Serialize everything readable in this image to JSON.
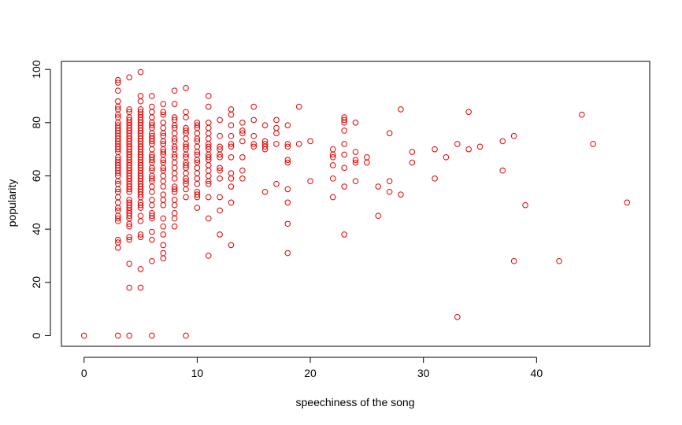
{
  "chart_data": {
    "type": "scatter",
    "title": "",
    "xlabel": "speechiness of the song",
    "ylabel": "popularity",
    "xlim": [
      -2,
      50
    ],
    "ylim": [
      -4,
      103
    ],
    "xticks": [
      "0",
      "10",
      "20",
      "30",
      "40"
    ],
    "yticks": [
      "0",
      "20",
      "40",
      "60",
      "80",
      "100"
    ],
    "point_color": "#e00000",
    "marker": "open-circle",
    "grid": false,
    "legend": "none",
    "points": [
      [
        0,
        0
      ],
      [
        3,
        0
      ],
      [
        4,
        0
      ],
      [
        6,
        0
      ],
      [
        9,
        0
      ],
      [
        3,
        96
      ],
      [
        3,
        95
      ],
      [
        3,
        92
      ],
      [
        3,
        88
      ],
      [
        3,
        86
      ],
      [
        3,
        85
      ],
      [
        3,
        83
      ],
      [
        3,
        82
      ],
      [
        3,
        80
      ],
      [
        3,
        79
      ],
      [
        3,
        78
      ],
      [
        3,
        77
      ],
      [
        3,
        76
      ],
      [
        3,
        75
      ],
      [
        3,
        74
      ],
      [
        3,
        73
      ],
      [
        3,
        72
      ],
      [
        3,
        71
      ],
      [
        3,
        70
      ],
      [
        3,
        69
      ],
      [
        3,
        67
      ],
      [
        3,
        66
      ],
      [
        3,
        65
      ],
      [
        3,
        64
      ],
      [
        3,
        63
      ],
      [
        3,
        62
      ],
      [
        3,
        61
      ],
      [
        3,
        60
      ],
      [
        3,
        58
      ],
      [
        3,
        57
      ],
      [
        3,
        55
      ],
      [
        3,
        54
      ],
      [
        3,
        52
      ],
      [
        3,
        50
      ],
      [
        3,
        48
      ],
      [
        3,
        47
      ],
      [
        3,
        45
      ],
      [
        3,
        44
      ],
      [
        3,
        43
      ],
      [
        3,
        36
      ],
      [
        3,
        35
      ],
      [
        3,
        33
      ],
      [
        4,
        97
      ],
      [
        4,
        85
      ],
      [
        4,
        84
      ],
      [
        4,
        82
      ],
      [
        4,
        81
      ],
      [
        4,
        80
      ],
      [
        4,
        79
      ],
      [
        4,
        78
      ],
      [
        4,
        77
      ],
      [
        4,
        76
      ],
      [
        4,
        75
      ],
      [
        4,
        74
      ],
      [
        4,
        73
      ],
      [
        4,
        72
      ],
      [
        4,
        71
      ],
      [
        4,
        70
      ],
      [
        4,
        69
      ],
      [
        4,
        68
      ],
      [
        4,
        67
      ],
      [
        4,
        66
      ],
      [
        4,
        65
      ],
      [
        4,
        64
      ],
      [
        4,
        63
      ],
      [
        4,
        62
      ],
      [
        4,
        61
      ],
      [
        4,
        60
      ],
      [
        4,
        59
      ],
      [
        4,
        58
      ],
      [
        4,
        57
      ],
      [
        4,
        56
      ],
      [
        4,
        55
      ],
      [
        4,
        54
      ],
      [
        4,
        51
      ],
      [
        4,
        50
      ],
      [
        4,
        49
      ],
      [
        4,
        48
      ],
      [
        4,
        47
      ],
      [
        4,
        46
      ],
      [
        4,
        45
      ],
      [
        4,
        44
      ],
      [
        4,
        42
      ],
      [
        4,
        41
      ],
      [
        4,
        37
      ],
      [
        4,
        36
      ],
      [
        4,
        27
      ],
      [
        4,
        18
      ],
      [
        5,
        99
      ],
      [
        5,
        90
      ],
      [
        5,
        88
      ],
      [
        5,
        85
      ],
      [
        5,
        84
      ],
      [
        5,
        83
      ],
      [
        5,
        82
      ],
      [
        5,
        81
      ],
      [
        5,
        80
      ],
      [
        5,
        79
      ],
      [
        5,
        78
      ],
      [
        5,
        77
      ],
      [
        5,
        76
      ],
      [
        5,
        75
      ],
      [
        5,
        74
      ],
      [
        5,
        73
      ],
      [
        5,
        72
      ],
      [
        5,
        71
      ],
      [
        5,
        70
      ],
      [
        5,
        69
      ],
      [
        5,
        68
      ],
      [
        5,
        67
      ],
      [
        5,
        66
      ],
      [
        5,
        65
      ],
      [
        5,
        64
      ],
      [
        5,
        63
      ],
      [
        5,
        62
      ],
      [
        5,
        61
      ],
      [
        5,
        60
      ],
      [
        5,
        59
      ],
      [
        5,
        58
      ],
      [
        5,
        57
      ],
      [
        5,
        56
      ],
      [
        5,
        55
      ],
      [
        5,
        54
      ],
      [
        5,
        53
      ],
      [
        5,
        52
      ],
      [
        5,
        50
      ],
      [
        5,
        49
      ],
      [
        5,
        48
      ],
      [
        5,
        45
      ],
      [
        5,
        43
      ],
      [
        5,
        38
      ],
      [
        5,
        37
      ],
      [
        5,
        25
      ],
      [
        5,
        18
      ],
      [
        6,
        90
      ],
      [
        6,
        86
      ],
      [
        6,
        84
      ],
      [
        6,
        82
      ],
      [
        6,
        80
      ],
      [
        6,
        79
      ],
      [
        6,
        78
      ],
      [
        6,
        76
      ],
      [
        6,
        75
      ],
      [
        6,
        74
      ],
      [
        6,
        73
      ],
      [
        6,
        72
      ],
      [
        6,
        70
      ],
      [
        6,
        68
      ],
      [
        6,
        67
      ],
      [
        6,
        66
      ],
      [
        6,
        65
      ],
      [
        6,
        63
      ],
      [
        6,
        62
      ],
      [
        6,
        60
      ],
      [
        6,
        59
      ],
      [
        6,
        58
      ],
      [
        6,
        56
      ],
      [
        6,
        54
      ],
      [
        6,
        51
      ],
      [
        6,
        49
      ],
      [
        6,
        46
      ],
      [
        6,
        45
      ],
      [
        6,
        44
      ],
      [
        6,
        39
      ],
      [
        6,
        36
      ],
      [
        6,
        28
      ],
      [
        7,
        87
      ],
      [
        7,
        84
      ],
      [
        7,
        83
      ],
      [
        7,
        80
      ],
      [
        7,
        78
      ],
      [
        7,
        76
      ],
      [
        7,
        75
      ],
      [
        7,
        73
      ],
      [
        7,
        72
      ],
      [
        7,
        70
      ],
      [
        7,
        69
      ],
      [
        7,
        68
      ],
      [
        7,
        66
      ],
      [
        7,
        65
      ],
      [
        7,
        63
      ],
      [
        7,
        62
      ],
      [
        7,
        60
      ],
      [
        7,
        58
      ],
      [
        7,
        56
      ],
      [
        7,
        53
      ],
      [
        7,
        51
      ],
      [
        7,
        49
      ],
      [
        7,
        44
      ],
      [
        7,
        41
      ],
      [
        7,
        38
      ],
      [
        7,
        34
      ],
      [
        7,
        31
      ],
      [
        7,
        29
      ],
      [
        8,
        92
      ],
      [
        8,
        87
      ],
      [
        8,
        82
      ],
      [
        8,
        81
      ],
      [
        8,
        79
      ],
      [
        8,
        78
      ],
      [
        8,
        76
      ],
      [
        8,
        74
      ],
      [
        8,
        73
      ],
      [
        8,
        71
      ],
      [
        8,
        70
      ],
      [
        8,
        68
      ],
      [
        8,
        67
      ],
      [
        8,
        65
      ],
      [
        8,
        63
      ],
      [
        8,
        61
      ],
      [
        8,
        59
      ],
      [
        8,
        56
      ],
      [
        8,
        55
      ],
      [
        8,
        54
      ],
      [
        8,
        51
      ],
      [
        8,
        49
      ],
      [
        8,
        46
      ],
      [
        8,
        44
      ],
      [
        8,
        41
      ],
      [
        9,
        93
      ],
      [
        9,
        84
      ],
      [
        9,
        82
      ],
      [
        9,
        78
      ],
      [
        9,
        77
      ],
      [
        9,
        76
      ],
      [
        9,
        74
      ],
      [
        9,
        72
      ],
      [
        9,
        71
      ],
      [
        9,
        70
      ],
      [
        9,
        68
      ],
      [
        9,
        67
      ],
      [
        9,
        65
      ],
      [
        9,
        64
      ],
      [
        9,
        63
      ],
      [
        9,
        61
      ],
      [
        9,
        59
      ],
      [
        9,
        58
      ],
      [
        9,
        57
      ],
      [
        9,
        55
      ],
      [
        9,
        52
      ],
      [
        10,
        80
      ],
      [
        10,
        79
      ],
      [
        10,
        78
      ],
      [
        10,
        76
      ],
      [
        10,
        74
      ],
      [
        10,
        73
      ],
      [
        10,
        71
      ],
      [
        10,
        69
      ],
      [
        10,
        68
      ],
      [
        10,
        66
      ],
      [
        10,
        65
      ],
      [
        10,
        63
      ],
      [
        10,
        61
      ],
      [
        10,
        59
      ],
      [
        10,
        57
      ],
      [
        10,
        54
      ],
      [
        10,
        53
      ],
      [
        10,
        52
      ],
      [
        10,
        48
      ],
      [
        11,
        90
      ],
      [
        11,
        86
      ],
      [
        11,
        80
      ],
      [
        11,
        78
      ],
      [
        11,
        76
      ],
      [
        11,
        74
      ],
      [
        11,
        72
      ],
      [
        11,
        71
      ],
      [
        11,
        70
      ],
      [
        11,
        68
      ],
      [
        11,
        67
      ],
      [
        11,
        66
      ],
      [
        11,
        64
      ],
      [
        11,
        62
      ],
      [
        11,
        60
      ],
      [
        11,
        58
      ],
      [
        11,
        57
      ],
      [
        11,
        52
      ],
      [
        11,
        44
      ],
      [
        11,
        30
      ],
      [
        12,
        81
      ],
      [
        12,
        75
      ],
      [
        12,
        71
      ],
      [
        12,
        70
      ],
      [
        12,
        68
      ],
      [
        12,
        67
      ],
      [
        12,
        63
      ],
      [
        12,
        62
      ],
      [
        12,
        59
      ],
      [
        12,
        52
      ],
      [
        12,
        47
      ],
      [
        12,
        38
      ],
      [
        13,
        85
      ],
      [
        13,
        83
      ],
      [
        13,
        79
      ],
      [
        13,
        75
      ],
      [
        13,
        72
      ],
      [
        13,
        71
      ],
      [
        13,
        67
      ],
      [
        13,
        61
      ],
      [
        13,
        59
      ],
      [
        13,
        56
      ],
      [
        13,
        50
      ],
      [
        13,
        34
      ],
      [
        14,
        80
      ],
      [
        14,
        77
      ],
      [
        14,
        76
      ],
      [
        14,
        73
      ],
      [
        14,
        67
      ],
      [
        14,
        62
      ],
      [
        14,
        59
      ],
      [
        15,
        86
      ],
      [
        15,
        81
      ],
      [
        15,
        75
      ],
      [
        15,
        72
      ],
      [
        15,
        71
      ],
      [
        16,
        79
      ],
      [
        16,
        73
      ],
      [
        16,
        72
      ],
      [
        16,
        71
      ],
      [
        16,
        70
      ],
      [
        16,
        54
      ],
      [
        17,
        81
      ],
      [
        17,
        78
      ],
      [
        17,
        76
      ],
      [
        17,
        72
      ],
      [
        17,
        57
      ],
      [
        18,
        79
      ],
      [
        18,
        72
      ],
      [
        18,
        71
      ],
      [
        18,
        66
      ],
      [
        18,
        65
      ],
      [
        18,
        55
      ],
      [
        18,
        50
      ],
      [
        18,
        42
      ],
      [
        18,
        31
      ],
      [
        19,
        86
      ],
      [
        19,
        72
      ],
      [
        20,
        73
      ],
      [
        20,
        58
      ],
      [
        22,
        70
      ],
      [
        22,
        68
      ],
      [
        22,
        67
      ],
      [
        22,
        64
      ],
      [
        22,
        59
      ],
      [
        22,
        52
      ],
      [
        23,
        82
      ],
      [
        23,
        81
      ],
      [
        23,
        80
      ],
      [
        23,
        77
      ],
      [
        23,
        72
      ],
      [
        23,
        68
      ],
      [
        23,
        63
      ],
      [
        23,
        56
      ],
      [
        23,
        38
      ],
      [
        24,
        80
      ],
      [
        24,
        69
      ],
      [
        24,
        66
      ],
      [
        24,
        65
      ],
      [
        24,
        58
      ],
      [
        25,
        67
      ],
      [
        25,
        65
      ],
      [
        26,
        56
      ],
      [
        26,
        45
      ],
      [
        27,
        76
      ],
      [
        27,
        58
      ],
      [
        27,
        54
      ],
      [
        28,
        85
      ],
      [
        28,
        53
      ],
      [
        29,
        69
      ],
      [
        29,
        65
      ],
      [
        31,
        70
      ],
      [
        31,
        59
      ],
      [
        32,
        67
      ],
      [
        33,
        72
      ],
      [
        33,
        7
      ],
      [
        34,
        84
      ],
      [
        34,
        70
      ],
      [
        35,
        71
      ],
      [
        37,
        73
      ],
      [
        37,
        62
      ],
      [
        38,
        75
      ],
      [
        38,
        28
      ],
      [
        39,
        49
      ],
      [
        42,
        28
      ],
      [
        44,
        83
      ],
      [
        45,
        72
      ],
      [
        48,
        50
      ]
    ]
  }
}
